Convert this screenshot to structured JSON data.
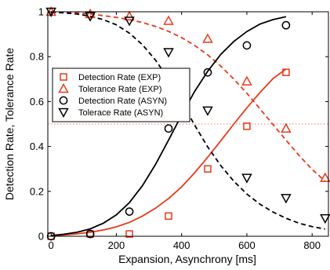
{
  "chart_data": {
    "type": "scatter",
    "xlabel": "Expansion, Asynchrony [ms]",
    "ylabel": "Detection Rate, Tolerance Rate",
    "xlim": [
      -10,
      850
    ],
    "ylim": [
      0,
      1
    ],
    "x_ticks": [
      0,
      200,
      400,
      600,
      800
    ],
    "y_ticks": [
      0,
      0.2,
      0.4,
      0.6,
      0.8,
      1
    ],
    "x_tick_labels": [
      "0",
      "200",
      "400",
      "600",
      "800"
    ],
    "y_tick_labels": [
      "0",
      "0.2",
      "0.4",
      "0.6",
      "0.8",
      "1"
    ],
    "grid": false,
    "legend_position": "center-left",
    "reference_line": {
      "y": 0.5,
      "color": "#ff7070",
      "style": "dotted"
    },
    "series": [
      {
        "name": "Detection Rate (EXP)",
        "marker": "square",
        "color": "#e8391a",
        "x": [
          0,
          120,
          240,
          360,
          480,
          600,
          720
        ],
        "y": [
          0.0,
          0.01,
          0.01,
          0.09,
          0.3,
          0.49,
          0.73
        ],
        "fit": {
          "style": "solid",
          "x": [
            0,
            40,
            80,
            120,
            160,
            200,
            240,
            280,
            320,
            360,
            400,
            440,
            480,
            520,
            560,
            600,
            640,
            680,
            720
          ],
          "y": [
            0.003,
            0.006,
            0.011,
            0.018,
            0.028,
            0.042,
            0.062,
            0.09,
            0.125,
            0.168,
            0.22,
            0.283,
            0.352,
            0.425,
            0.5,
            0.572,
            0.64,
            0.702,
            0.745
          ]
        }
      },
      {
        "name": "Tolerance Rate (EXP)",
        "marker": "triangle-up",
        "color": "#e8391a",
        "x": [
          0,
          120,
          240,
          360,
          480,
          600,
          720,
          840
        ],
        "y": [
          1.0,
          0.99,
          0.98,
          0.96,
          0.88,
          0.69,
          0.48,
          0.26
        ],
        "fit": {
          "style": "dashed",
          "x": [
            0,
            40,
            80,
            120,
            160,
            200,
            240,
            280,
            320,
            360,
            400,
            440,
            480,
            520,
            560,
            600,
            640,
            680,
            720,
            760,
            800,
            840
          ],
          "y": [
            1.0,
            0.998,
            0.995,
            0.99,
            0.983,
            0.975,
            0.965,
            0.952,
            0.935,
            0.913,
            0.885,
            0.85,
            0.808,
            0.758,
            0.7,
            0.637,
            0.568,
            0.498,
            0.428,
            0.36,
            0.298,
            0.245
          ]
        }
      },
      {
        "name": "Detection Rate (ASYN)",
        "marker": "circle",
        "color": "#000000",
        "x": [
          0,
          120,
          240,
          360,
          480,
          600,
          720
        ],
        "y": [
          0.0,
          0.01,
          0.11,
          0.48,
          0.73,
          0.85,
          0.94
        ],
        "fit": {
          "style": "solid",
          "x": [
            0,
            40,
            80,
            120,
            160,
            200,
            240,
            280,
            320,
            360,
            400,
            440,
            480,
            520,
            560,
            600,
            640,
            680,
            720
          ],
          "y": [
            0.003,
            0.009,
            0.018,
            0.033,
            0.058,
            0.095,
            0.15,
            0.225,
            0.32,
            0.428,
            0.54,
            0.645,
            0.735,
            0.81,
            0.868,
            0.912,
            0.945,
            0.965,
            0.978
          ]
        }
      },
      {
        "name": "Tolerace Rate (ASYN)",
        "marker": "triangle-down",
        "color": "#000000",
        "x": [
          0,
          120,
          240,
          360,
          480,
          600,
          720,
          840
        ],
        "y": [
          1.0,
          0.98,
          0.96,
          0.82,
          0.56,
          0.26,
          0.17,
          0.08
        ],
        "fit": {
          "style": "dashed",
          "x": [
            0,
            40,
            80,
            120,
            160,
            200,
            240,
            280,
            320,
            360,
            400,
            440,
            480,
            520,
            560,
            600,
            640,
            680,
            720,
            760,
            800,
            840
          ],
          "y": [
            0.998,
            0.995,
            0.99,
            0.98,
            0.965,
            0.942,
            0.905,
            0.853,
            0.785,
            0.7,
            0.6,
            0.495,
            0.398,
            0.315,
            0.245,
            0.188,
            0.143,
            0.108,
            0.08,
            0.058,
            0.043,
            0.032
          ]
        }
      }
    ]
  }
}
